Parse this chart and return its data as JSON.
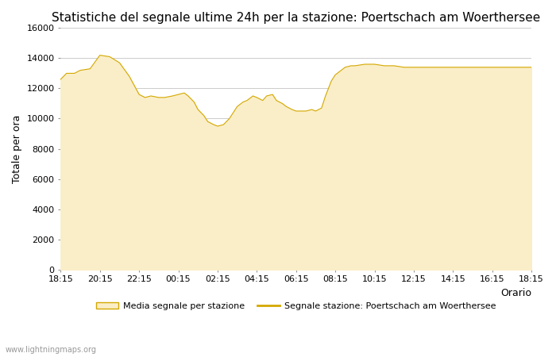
{
  "title": "Statistiche del segnale ultime 24h per la stazione: Poertschach am Woerthersee",
  "xlabel": "Orario",
  "ylabel": "Totale per ora",
  "watermark": "www.lightningmaps.org",
  "legend_labels": [
    "Media segnale per stazione",
    "Segnale stazione: Poertschach am Woerthersee"
  ],
  "fill_color": "#FAEEC8",
  "line_color": "#D4A800",
  "background_color": "#ffffff",
  "grid_color": "#cccccc",
  "ylim": [
    0,
    16000
  ],
  "yticks": [
    0,
    2000,
    4000,
    6000,
    8000,
    10000,
    12000,
    14000,
    16000
  ],
  "x_tick_labels": [
    "18:15",
    "20:15",
    "22:15",
    "00:15",
    "02:15",
    "04:15",
    "06:15",
    "08:15",
    "10:15",
    "12:15",
    "14:15",
    "16:15",
    "18:15"
  ],
  "title_fontsize": 11,
  "axis_fontsize": 9,
  "tick_fontsize": 8,
  "area_x": [
    0.0,
    0.3,
    0.7,
    1.0,
    1.5,
    2.0,
    2.5,
    3.0,
    3.5,
    4.0,
    4.3,
    4.6,
    5.0,
    5.3,
    5.7,
    6.0,
    6.3,
    6.5,
    6.8,
    7.0,
    7.3,
    7.5,
    7.8,
    8.0,
    8.3,
    8.6,
    9.0,
    9.3,
    9.5,
    9.8,
    10.0,
    10.3,
    10.5,
    10.8,
    11.0,
    11.3,
    11.5,
    11.8,
    12.0,
    12.3,
    12.5,
    12.8,
    13.0,
    13.3,
    13.5,
    13.8,
    14.0,
    14.3,
    14.5,
    14.8,
    15.0,
    15.5,
    16.0,
    16.5,
    17.0,
    17.5,
    24.0
  ],
  "area_y": [
    12600,
    13000,
    13000,
    13200,
    13300,
    14200,
    14100,
    13700,
    12800,
    11600,
    11400,
    11500,
    11400,
    11400,
    11500,
    11600,
    11700,
    11500,
    11100,
    10600,
    10200,
    9800,
    9600,
    9500,
    9600,
    10000,
    10800,
    11100,
    11200,
    11500,
    11400,
    11200,
    11500,
    11600,
    11200,
    11000,
    10800,
    10600,
    10500,
    10500,
    10500,
    10600,
    10500,
    10700,
    11500,
    12500,
    12900,
    13200,
    13400,
    13500,
    13500,
    13600,
    13600,
    13500,
    13500,
    13400,
    13400
  ]
}
